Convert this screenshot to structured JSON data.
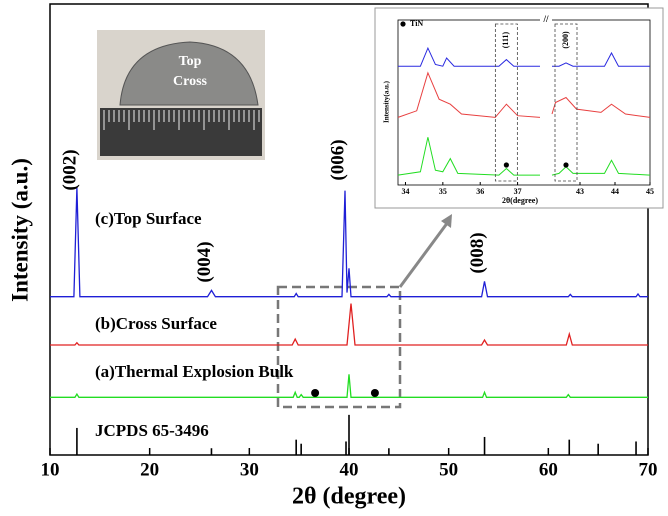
{
  "chart_data": [
    {
      "type": "line",
      "x_label": "2θ (degree)",
      "y_label": "Intensity (a.u.)",
      "xlim": [
        10,
        70
      ],
      "xticks": [
        10,
        20,
        30,
        40,
        50,
        60,
        70
      ],
      "ylim": [
        0,
        100
      ],
      "series": [
        {
          "name": "(c)Top Surface",
          "color": "#1f1fd6",
          "x": [
            10,
            12.4,
            12.7,
            13.0,
            25.8,
            26.2,
            26.6,
            34.5,
            34.7,
            34.9,
            39.3,
            39.6,
            39.8,
            40.0,
            40.2,
            43.8,
            44,
            44.2,
            53.3,
            53.6,
            53.9,
            62,
            62.2,
            62.4,
            68.8,
            69,
            69.2,
            70
          ],
          "values": [
            35.1,
            35.1,
            59.3,
            35.1,
            35.1,
            36.5,
            35.1,
            35.1,
            35.8,
            35.1,
            35.1,
            58.6,
            36,
            41.4,
            35.1,
            35.1,
            35.6,
            35.1,
            35.1,
            38.5,
            35.1,
            35.1,
            35.6,
            35.1,
            35.1,
            35.7,
            35.1,
            35.1
          ]
        },
        {
          "name": "(b)Cross Surface",
          "color": "#e02020",
          "x": [
            10,
            12.5,
            12.7,
            12.9,
            34.3,
            34.6,
            34.9,
            39.8,
            40.2,
            40.6,
            53.3,
            53.6,
            53.9,
            61.8,
            62.1,
            62.4,
            70
          ],
          "values": [
            24.4,
            24.4,
            24.9,
            24.4,
            24.4,
            25.7,
            24.4,
            24.4,
            33.6,
            24.4,
            24.4,
            25.5,
            24.4,
            24.4,
            26.8,
            24.4,
            24.4
          ]
        },
        {
          "name": "(a)Thermal Explosion Bulk",
          "color": "#22dd22",
          "x": [
            10,
            12.5,
            12.7,
            12.9,
            34.4,
            34.6,
            34.8,
            35.0,
            35.2,
            35.4,
            39.8,
            40.0,
            40.2,
            53.4,
            53.6,
            53.8,
            61.8,
            62.0,
            62.2,
            70
          ],
          "values": [
            12.8,
            12.8,
            13.5,
            12.8,
            12.8,
            13.9,
            12.8,
            12.8,
            13.4,
            12.8,
            12.8,
            17.9,
            12.8,
            12.8,
            13.9,
            12.8,
            12.8,
            13.4,
            12.8,
            12.8
          ]
        },
        {
          "name": "JCPDS 65-3496",
          "color": "#000000",
          "style": "stick",
          "x": [
            12.7,
            26.2,
            34.7,
            35.2,
            39.7,
            40.0,
            44.0,
            53.6,
            62.1,
            65.0,
            68.8
          ],
          "values": [
            6,
            1.5,
            3.4,
            2.5,
            3,
            8.9,
            1.5,
            4,
            3.4,
            2.5,
            3
          ]
        }
      ],
      "annotations": [
        {
          "text": "(002)",
          "x": 12.7
        },
        {
          "text": "(004)",
          "x": 26.2
        },
        {
          "text": "(006)",
          "x": 39.6
        },
        {
          "text": "(008)",
          "x": 53.6
        }
      ],
      "markers_x": [
        36.6,
        42.6
      ]
    },
    {
      "type": "line",
      "x_label": "2θ(degree)",
      "y_label": "Intensity(a.u.)",
      "xlim": [
        33.8,
        45
      ],
      "xbreak": [
        37.6,
        42.2
      ],
      "xticks": [
        34,
        35,
        36,
        37,
        43,
        44,
        45
      ],
      "ylim": [
        0,
        100
      ],
      "legend_label": "TiN",
      "series": [
        {
          "color": "#2a2ae0",
          "x": [
            33.8,
            34.4,
            34.6,
            34.8,
            35.0,
            35.1,
            35.3,
            36.5,
            36.7,
            36.9,
            37.6,
            42.2,
            42.4,
            42.6,
            42.8,
            43.7,
            43.9,
            44.1,
            45
          ],
          "values": [
            72,
            72,
            83,
            73,
            72,
            77,
            72,
            72,
            76,
            72,
            72,
            72,
            72,
            74,
            72,
            72,
            80,
            72,
            72
          ]
        },
        {
          "color": "#e84040",
          "x": [
            33.8,
            34.3,
            34.6,
            34.9,
            35.2,
            35.5,
            36.4,
            36.7,
            37.0,
            37.6,
            42.2,
            42.3,
            42.6,
            42.9,
            43.6,
            43.9,
            44.3,
            45
          ],
          "values": [
            41,
            45,
            68,
            52,
            49,
            43,
            41,
            49,
            42,
            41,
            43,
            50,
            53,
            46,
            44,
            49,
            43,
            41
          ]
        },
        {
          "color": "#22dd22",
          "x": [
            33.8,
            34.4,
            34.6,
            34.8,
            35.0,
            35.2,
            35.4,
            36.5,
            36.7,
            36.9,
            37.6,
            42.2,
            42.4,
            42.6,
            42.8,
            43.7,
            43.9,
            44.1,
            45
          ],
          "values": [
            6,
            8,
            29,
            9,
            8,
            16,
            7,
            6,
            10,
            6,
            6,
            6,
            7,
            11,
            7,
            7,
            15,
            7,
            6
          ]
        }
      ],
      "annotations": [
        {
          "text": "(111)",
          "x": 36.7
        },
        {
          "text": "(200)",
          "x": 42.6
        }
      ],
      "markers_x": [
        36.7,
        42.6
      ]
    }
  ],
  "photo": {
    "labels": [
      "Top",
      "Cross"
    ]
  }
}
